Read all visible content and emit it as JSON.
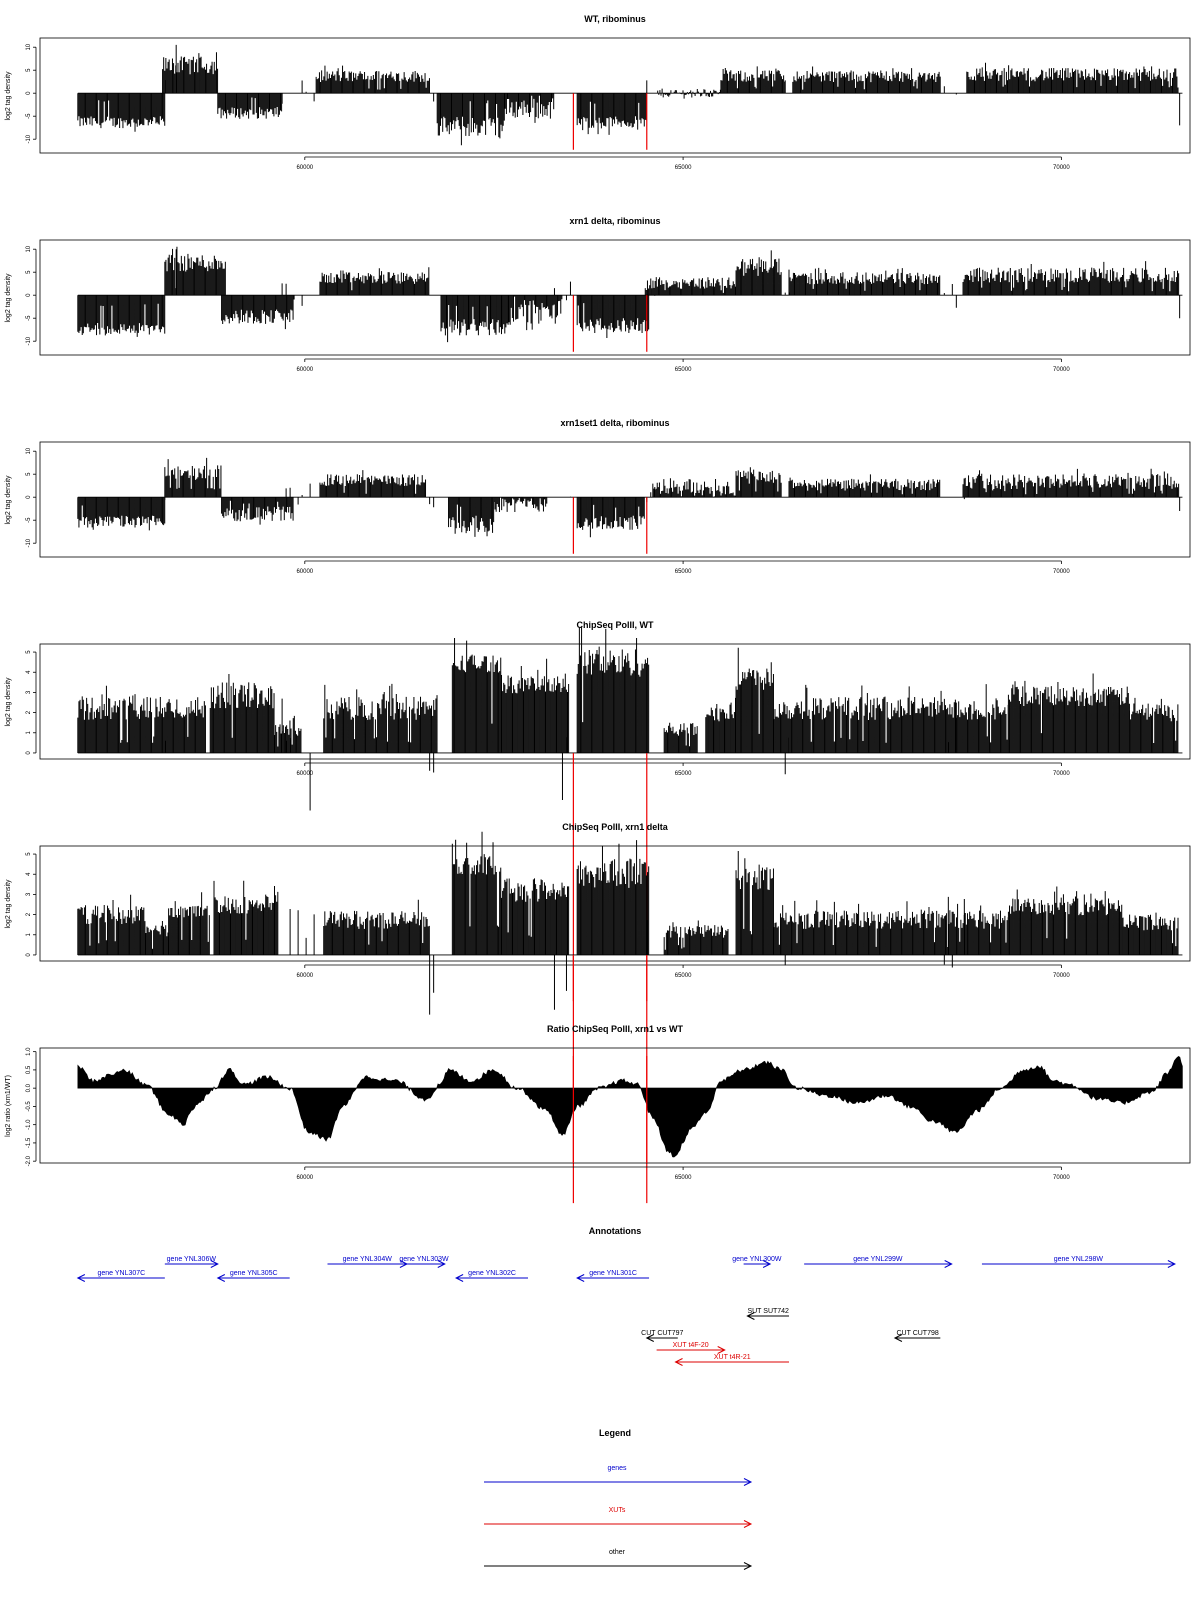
{
  "chart_data": [
    {
      "type": "bar",
      "id": "wt-ribominus",
      "title": "WT, ribominus",
      "ylabel": "log2 tag density",
      "xlim": [
        56500,
        71700
      ],
      "ylim": [
        -13,
        12
      ],
      "yticks": [
        10,
        5,
        0,
        -5,
        -10
      ],
      "xticks": [
        60000,
        65000,
        70000
      ],
      "markers": [
        63550,
        64520
      ],
      "segments": [
        {
          "x0": 57000,
          "x1": 58150,
          "min": -9,
          "max": -5
        },
        {
          "x0": 58120,
          "x1": 58850,
          "min": 2,
          "max": 8,
          "peaks": [
            [
              58300,
              10.5
            ],
            [
              58600,
              8.7
            ]
          ]
        },
        {
          "x0": 58850,
          "x1": 59700,
          "min": -7,
          "max": -3
        },
        {
          "x0": 60150,
          "x1": 61650,
          "min": 1,
          "max": 5
        },
        {
          "x0": 61750,
          "x1": 62650,
          "min": -12,
          "max": -5
        },
        {
          "x0": 62650,
          "x1": 63300,
          "min": -8,
          "max": -1
        },
        {
          "x0": 63600,
          "x1": 64520,
          "min": -9,
          "max": -5
        },
        {
          "x0": 64650,
          "x1": 65500,
          "min": -2,
          "max": 1
        },
        {
          "x0": 65500,
          "x1": 66350,
          "min": 1,
          "max": 5
        },
        {
          "x0": 66450,
          "x1": 68400,
          "min": 1,
          "max": 5
        },
        {
          "x0": 68750,
          "x1": 71550,
          "min": 1,
          "max": 5.5,
          "tail": -7
        }
      ]
    },
    {
      "type": "bar",
      "id": "xrn1-ribominus",
      "title": "xrn1 delta, ribominus",
      "ylabel": "log2 tag density",
      "xlim": [
        56500,
        71700
      ],
      "ylim": [
        -13,
        12
      ],
      "yticks": [
        10,
        5,
        0,
        -5,
        -10
      ],
      "xticks": [
        60000,
        65000,
        70000
      ],
      "markers": [
        63550,
        64520
      ],
      "segments": [
        {
          "x0": 57000,
          "x1": 58150,
          "min": -10,
          "max": -6
        },
        {
          "x0": 58150,
          "x1": 58950,
          "min": 3,
          "max": 9,
          "peaks": [
            [
              58300,
              10
            ]
          ]
        },
        {
          "x0": 58900,
          "x1": 59850,
          "min": -8,
          "max": -3
        },
        {
          "x0": 60200,
          "x1": 61650,
          "min": 1,
          "max": 5
        },
        {
          "x0": 61800,
          "x1": 62700,
          "min": -11,
          "max": -5
        },
        {
          "x0": 62700,
          "x1": 63400,
          "min": -9,
          "max": -1
        },
        {
          "x0": 63600,
          "x1": 64550,
          "min": -10,
          "max": -5
        },
        {
          "x0": 64500,
          "x1": 65700,
          "min": 0,
          "max": 4
        },
        {
          "x0": 65700,
          "x1": 66300,
          "min": 2,
          "max": 8
        },
        {
          "x0": 66400,
          "x1": 68400,
          "min": 1,
          "max": 5
        },
        {
          "x0": 68700,
          "x1": 71550,
          "min": 1,
          "max": 6,
          "tail": -5
        }
      ]
    },
    {
      "type": "bar",
      "id": "xrn1set1-ribominus",
      "title": "xrn1set1 delta, ribominus",
      "ylabel": "log2 tag density",
      "xlim": [
        56500,
        71700
      ],
      "ylim": [
        -13,
        12
      ],
      "yticks": [
        10,
        5,
        0,
        -5,
        -10
      ],
      "xticks": [
        60000,
        65000,
        70000
      ],
      "markers": [
        63550,
        64520
      ],
      "segments": [
        {
          "x0": 57000,
          "x1": 58150,
          "min": -8,
          "max": -4
        },
        {
          "x0": 58150,
          "x1": 58900,
          "min": 2,
          "max": 7
        },
        {
          "x0": 58900,
          "x1": 59850,
          "min": -7,
          "max": -2
        },
        {
          "x0": 60200,
          "x1": 61600,
          "min": 1,
          "max": 5
        },
        {
          "x0": 61900,
          "x1": 62500,
          "min": -10,
          "max": -4
        },
        {
          "x0": 62500,
          "x1": 63200,
          "min": -5,
          "max": 0
        },
        {
          "x0": 63600,
          "x1": 64500,
          "min": -9,
          "max": -4
        },
        {
          "x0": 64600,
          "x1": 65700,
          "min": -2,
          "max": 4
        },
        {
          "x0": 65700,
          "x1": 66300,
          "min": 1,
          "max": 6
        },
        {
          "x0": 66400,
          "x1": 68400,
          "min": 0,
          "max": 4
        },
        {
          "x0": 68700,
          "x1": 71550,
          "min": 0,
          "max": 5,
          "tail": -3
        }
      ]
    },
    {
      "type": "bar",
      "id": "chipseq-wt",
      "title": "ChipSeq PolII, WT",
      "ylabel": "log2 tag density",
      "xlim": [
        56500,
        71700
      ],
      "ylim": [
        -0.3,
        5.4
      ],
      "yticks": [
        0,
        1,
        2,
        3,
        4,
        5
      ],
      "xticks": [
        60000,
        65000,
        70000
      ],
      "markers": [
        63550,
        64520
      ],
      "segments": [
        {
          "x0": 57000,
          "x1": 58700,
          "min": 1,
          "max": 2.8
        },
        {
          "x0": 58750,
          "x1": 59600,
          "min": 1.5,
          "max": 3.5
        },
        {
          "x0": 59600,
          "x1": 59950,
          "min": 0.5,
          "max": 1.5
        },
        {
          "x0": 60250,
          "x1": 61750,
          "min": 1,
          "max": 2.8
        },
        {
          "x0": 61950,
          "x1": 62600,
          "min": 3.5,
          "max": 4.9
        },
        {
          "x0": 62600,
          "x1": 63500,
          "min": 2.5,
          "max": 3.8
        },
        {
          "x0": 63600,
          "x1": 64550,
          "min": 3,
          "max": 5.2
        },
        {
          "x0": 64750,
          "x1": 65200,
          "min": 0.5,
          "max": 1.5
        },
        {
          "x0": 65300,
          "x1": 65700,
          "min": 1,
          "max": 2.5
        },
        {
          "x0": 65700,
          "x1": 66200,
          "min": 2.5,
          "max": 4.3
        },
        {
          "x0": 66200,
          "x1": 69300,
          "min": 1,
          "max": 2.8
        },
        {
          "x0": 69300,
          "x1": 70900,
          "min": 1.8,
          "max": 3.3
        },
        {
          "x0": 70900,
          "x1": 71550,
          "min": 1,
          "max": 2.5
        }
      ]
    },
    {
      "type": "bar",
      "id": "chipseq-xrn1",
      "title": "ChipSeq PolII, xrn1 delta",
      "ylabel": "log2 tag density",
      "xlim": [
        56500,
        71700
      ],
      "ylim": [
        -0.3,
        5.4
      ],
      "yticks": [
        0,
        1,
        2,
        3,
        4,
        5
      ],
      "xticks": [
        60000,
        65000,
        70000
      ],
      "markers": [
        63550,
        64520
      ],
      "segments": [
        {
          "x0": 57000,
          "x1": 57900,
          "min": 1,
          "max": 2.5
        },
        {
          "x0": 57900,
          "x1": 58200,
          "min": 0.5,
          "max": 1.5
        },
        {
          "x0": 58200,
          "x1": 58750,
          "min": 1.5,
          "max": 2.5
        },
        {
          "x0": 58800,
          "x1": 59650,
          "min": 1.5,
          "max": 3
        },
        {
          "x0": 60250,
          "x1": 61650,
          "min": 0.8,
          "max": 2.2
        },
        {
          "x0": 61950,
          "x1": 62600,
          "min": 3.5,
          "max": 4.9
        },
        {
          "x0": 62600,
          "x1": 63500,
          "min": 2,
          "max": 3.8
        },
        {
          "x0": 63600,
          "x1": 64550,
          "min": 2.5,
          "max": 4.8
        },
        {
          "x0": 64750,
          "x1": 65600,
          "min": 0.5,
          "max": 1.5
        },
        {
          "x0": 65700,
          "x1": 66200,
          "min": 2.5,
          "max": 4.5
        },
        {
          "x0": 66200,
          "x1": 69300,
          "min": 0.8,
          "max": 2.2
        },
        {
          "x0": 69300,
          "x1": 70800,
          "min": 1.5,
          "max": 2.8
        },
        {
          "x0": 70800,
          "x1": 71550,
          "min": 0.8,
          "max": 2
        }
      ]
    },
    {
      "type": "area",
      "id": "ratio",
      "title": "Ratio ChipSeq PolII, xrn1 vs WT",
      "ylabel": "log2 ratio (xrn1/WT)",
      "xlim": [
        56500,
        71700
      ],
      "ylim": [
        -2.05,
        1.1
      ],
      "yticks": [
        1.0,
        0.5,
        0.0,
        -0.5,
        -1.0,
        -1.5,
        -2.0
      ],
      "ytick_labels": [
        "1.0",
        "0.5",
        "0.0",
        "-0.5",
        "-1.0",
        "-1.5",
        "-2.0"
      ],
      "xticks": [
        60000,
        65000,
        70000
      ],
      "markers": [
        63550,
        64520
      ],
      "x": [
        57000,
        57200,
        57500,
        57600,
        57900,
        58200,
        58400,
        58500,
        58600,
        58800,
        59000,
        59200,
        59500,
        59800,
        60050,
        60300,
        60500,
        60800,
        61200,
        61600,
        61800,
        61900,
        62200,
        62500,
        62800,
        63200,
        63400,
        63600,
        63900,
        64200,
        64400,
        64600,
        64800,
        64900,
        65000,
        65100,
        65300,
        65500,
        65800,
        66100,
        66300,
        66500,
        66900,
        67300,
        67700,
        68000,
        68300,
        68600,
        68900,
        69200,
        69500,
        69700,
        69900,
        70100,
        70500,
        70800,
        71200,
        71400,
        71550,
        71600
      ],
      "y": [
        0.6,
        0.2,
        0.4,
        0.5,
        0.1,
        -0.7,
        -1.0,
        -0.6,
        -0.4,
        0.0,
        0.5,
        0.1,
        0.3,
        0.0,
        -1.2,
        -1.4,
        -0.5,
        0.3,
        0.2,
        -0.3,
        0.1,
        0.5,
        0.2,
        0.5,
        0.0,
        -0.6,
        -1.3,
        -0.5,
        0.0,
        0.2,
        0.1,
        -0.8,
        -1.7,
        -1.9,
        -1.5,
        -1.1,
        -0.7,
        0.2,
        0.5,
        0.7,
        0.5,
        0.0,
        -0.2,
        -0.4,
        -0.2,
        -0.5,
        -0.9,
        -1.2,
        -0.6,
        0.0,
        0.5,
        0.6,
        0.2,
        0.1,
        -0.3,
        -0.4,
        -0.1,
        0.4,
        0.9,
        0.6
      ]
    }
  ],
  "annotations": {
    "title": "Annotations",
    "features": [
      {
        "label": "gene YNL307C",
        "x0": 57000,
        "x1": 58150,
        "dir": "left",
        "color": "#0000cc",
        "row": 1
      },
      {
        "label": "gene YNL306W",
        "x0": 58150,
        "x1": 58850,
        "dir": "right",
        "color": "#0000cc",
        "row": 0
      },
      {
        "label": "gene YNL305C",
        "x0": 58850,
        "x1": 59800,
        "dir": "left",
        "color": "#0000cc",
        "row": 1
      },
      {
        "label": "gene YNL304W",
        "x0": 60300,
        "x1": 61350,
        "dir": "right",
        "color": "#0000cc",
        "row": 0
      },
      {
        "label": "gene YNL303W",
        "x0": 61300,
        "x1": 61850,
        "dir": "right",
        "color": "#0000cc",
        "row": 0
      },
      {
        "label": "gene YNL302C",
        "x0": 62000,
        "x1": 62950,
        "dir": "left",
        "color": "#0000cc",
        "row": 1
      },
      {
        "label": "gene YNL301C",
        "x0": 63600,
        "x1": 64550,
        "dir": "left",
        "color": "#0000cc",
        "row": 1
      },
      {
        "label": "gene YNL300W",
        "x0": 65800,
        "x1": 66150,
        "dir": "right",
        "color": "#0000cc",
        "row": 0
      },
      {
        "label": "gene YNL299W",
        "x0": 66600,
        "x1": 68550,
        "dir": "right",
        "color": "#0000cc",
        "row": 0
      },
      {
        "label": "gene YNL298W",
        "x0": 68950,
        "x1": 71500,
        "dir": "right",
        "color": "#0000cc",
        "row": 0
      },
      {
        "label": "SUT SUT742",
        "x0": 65850,
        "x1": 66400,
        "dir": "left",
        "color": "#000000",
        "row": 3
      },
      {
        "label": "CUT CUT797",
        "x0": 64520,
        "x1": 64930,
        "dir": "left",
        "color": "#000000",
        "row": 4
      },
      {
        "label": "XUT t4F-20",
        "x0": 64650,
        "x1": 65550,
        "dir": "right",
        "color": "#dd0000",
        "row": 5
      },
      {
        "label": "XUT t4R-21",
        "x0": 64900,
        "x1": 66400,
        "dir": "left",
        "color": "#dd0000",
        "row": 6
      },
      {
        "label": "CUT CUT798",
        "x0": 67800,
        "x1": 68400,
        "dir": "left",
        "color": "#000000",
        "row": 4
      }
    ]
  },
  "legend": {
    "title": "Legend",
    "items": [
      {
        "label": "genes",
        "color": "#0000cc"
      },
      {
        "label": "XUTs",
        "color": "#dd0000"
      },
      {
        "label": "other",
        "color": "#000000"
      }
    ]
  }
}
